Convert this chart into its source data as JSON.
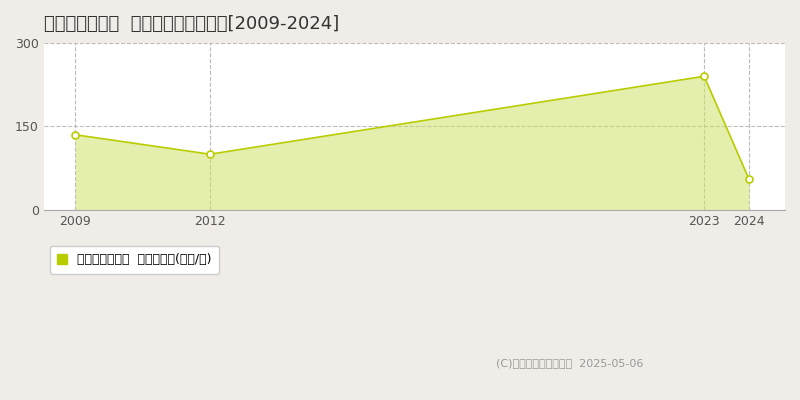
{
  "title": "岡山市北区幸町  マンション価格推移[2009-2024]",
  "years": [
    2009,
    2012,
    2023,
    2024
  ],
  "values": [
    135,
    100,
    240,
    55
  ],
  "line_color": "#b8cc00",
  "fill_color": "#cfe06a",
  "fill_alpha": 0.55,
  "marker_facecolor": "white",
  "marker_edgecolor": "#b8cc00",
  "bg_color": "#f0ede8",
  "plot_bg_color": "#ffffff",
  "ylim": [
    0,
    300
  ],
  "yticks": [
    0,
    150,
    300
  ],
  "xticks": [
    2009,
    2012,
    2023,
    2024
  ],
  "xlim": [
    2008.3,
    2024.8
  ],
  "grid_color": "#bbbbbb",
  "grid_style": "--",
  "legend_label": "マンション価格  平均坪単価(万円/坪)",
  "copyright": "(C)土地価格ドットコム  2025-05-06",
  "title_fontsize": 13,
  "tick_fontsize": 9,
  "legend_fontsize": 9
}
